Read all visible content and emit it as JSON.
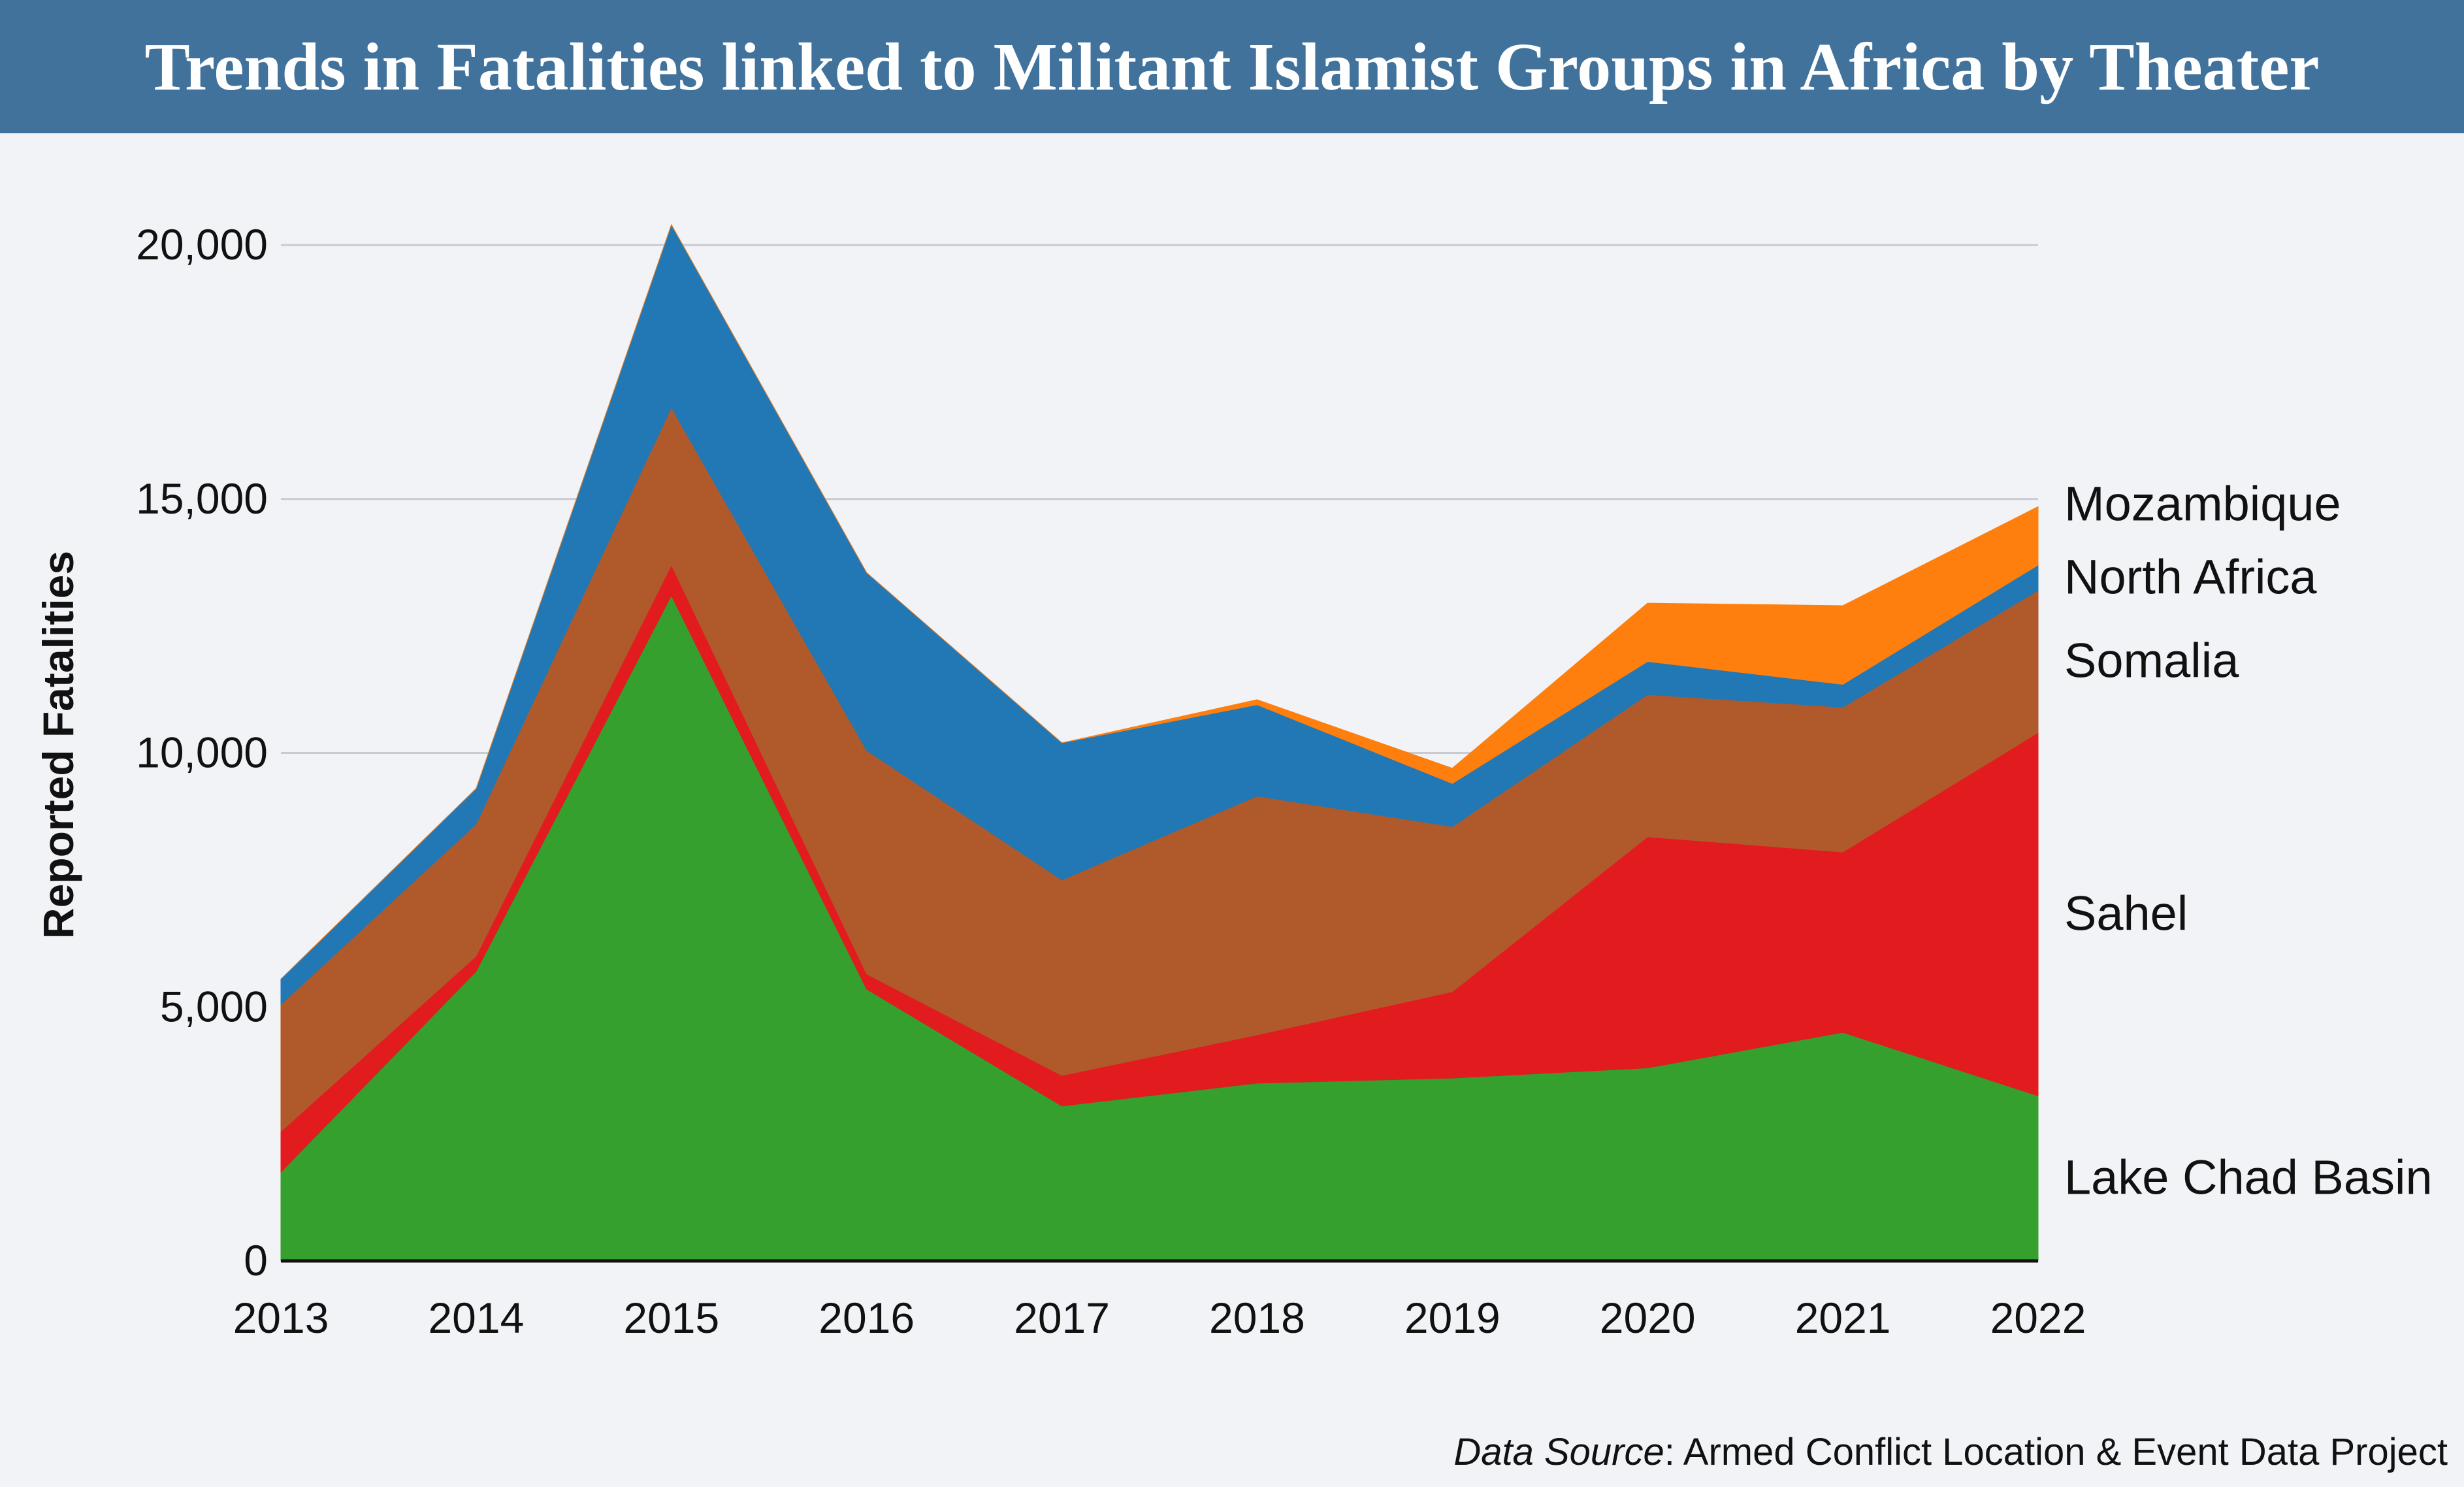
{
  "title": "Trends in Fatalities linked to Militant Islamist Groups in Africa by Theater",
  "source": {
    "prefix": "Data Source",
    "text": ": Armed Conflict Location & Event Data Project"
  },
  "chart_data": {
    "type": "area",
    "stacked": true,
    "title": "Trends in Fatalities linked to Militant Islamist Groups in Africa by Theater",
    "xlabel": "",
    "ylabel": "Reported Fatalities",
    "x": [
      "2013",
      "2014",
      "2015",
      "2016",
      "2017",
      "2018",
      "2019",
      "2020",
      "2021",
      "2022"
    ],
    "ylim": [
      0,
      20000
    ],
    "yticks": [
      0,
      5000,
      10000,
      15000,
      20000
    ],
    "ytick_labels": [
      "0",
      "5,000",
      "10,000",
      "15,000",
      "20,000"
    ],
    "grid": true,
    "legend": "right-inline",
    "series": [
      {
        "name": "Lake Chad Basin",
        "color": "#35a02e",
        "values": [
          1750,
          5700,
          13100,
          5350,
          3050,
          3500,
          3600,
          3800,
          4500,
          3250
        ]
      },
      {
        "name": "Sahel",
        "color": "#e11b1e",
        "values": [
          800,
          300,
          600,
          300,
          600,
          950,
          1700,
          4550,
          3550,
          7150
        ]
      },
      {
        "name": "Somalia",
        "color": "#b05a2b",
        "values": [
          2500,
          2600,
          3100,
          4400,
          3850,
          4700,
          3250,
          2800,
          2850,
          2800
        ]
      },
      {
        "name": "North Africa",
        "color": "#2178b5",
        "values": [
          500,
          700,
          3600,
          3500,
          2700,
          1800,
          850,
          650,
          450,
          500
        ]
      },
      {
        "name": "Mozambique",
        "color": "#ff7f0e",
        "values": [
          0,
          0,
          0,
          0,
          0,
          100,
          300,
          1150,
          1550,
          1150
        ]
      }
    ]
  }
}
